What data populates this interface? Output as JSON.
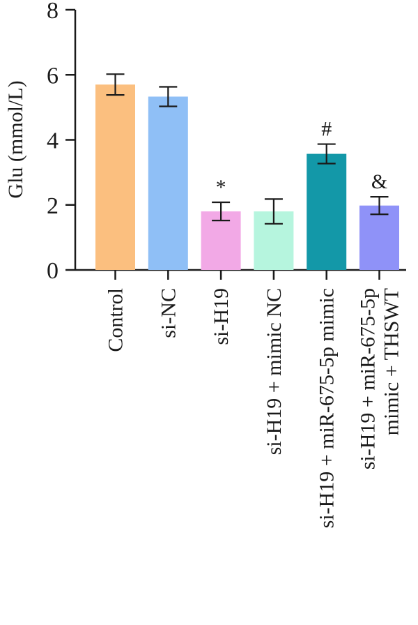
{
  "chart_data": {
    "type": "bar",
    "title": "",
    "xlabel": "",
    "ylabel": "Glu (mmol/L)",
    "ylim": [
      0,
      8
    ],
    "yticks": [
      0,
      2,
      4,
      6,
      8
    ],
    "grid": false,
    "legend": "none",
    "categories": [
      [
        "Control"
      ],
      [
        "si-NC"
      ],
      [
        "si-H19"
      ],
      [
        "si-H19 + mimic NC"
      ],
      [
        "si-H19 + miR-675-5p mimic"
      ],
      [
        "si-H19 + miR-675-5p",
        "mimic + THSWT"
      ]
    ],
    "values": [
      5.7,
      5.33,
      1.8,
      1.8,
      3.57,
      1.98
    ],
    "errors": [
      0.32,
      0.3,
      0.28,
      0.38,
      0.3,
      0.27
    ],
    "annotations": [
      "",
      "",
      "*",
      "",
      "#",
      "&"
    ],
    "colors": [
      "#fbbf7f",
      "#8fbff6",
      "#f2a9e6",
      "#b6f5de",
      "#1398a8",
      "#8f92f8"
    ]
  }
}
